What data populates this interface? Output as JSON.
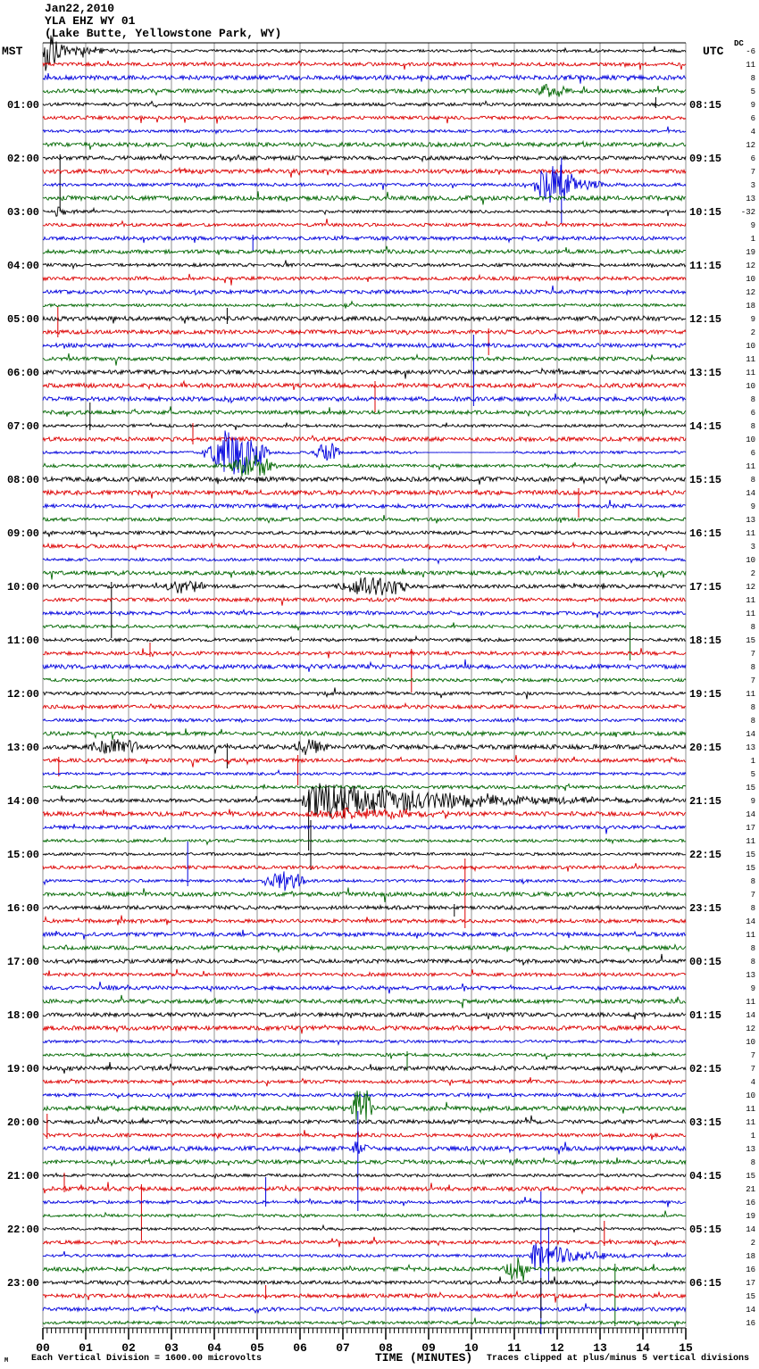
{
  "title": {
    "date": "Jan22,2010",
    "station": "YLA EHZ WY 01",
    "location": "(Lake Butte, Yellowstone Park, WY)"
  },
  "left_axis_label": "MST",
  "right_axis_label": "UTC",
  "dc_header": "DC",
  "footer": {
    "corner_mark": "M",
    "left_note": "Each Vertical Division = 1600.00 microvolts",
    "axis_title": "TIME (MINUTES)",
    "right_note": "Traces clipped at plus/minus 5 vertical divisions"
  },
  "x_axis": {
    "label": "TIME (MINUTES)",
    "tick_labels": [
      "00",
      "01",
      "02",
      "03",
      "04",
      "05",
      "06",
      "07",
      "08",
      "09",
      "10",
      "11",
      "12",
      "13",
      "14",
      "15"
    ],
    "minutes_per_line": 15
  },
  "colors": {
    "trace_cycle": [
      "#000000",
      "#dd0000",
      "#0000dd",
      "#006600"
    ],
    "grid": "#909090",
    "background": "#ffffff"
  },
  "chart_data": {
    "type": "line",
    "subtype": "helicorder",
    "lines_per_hour": 4,
    "minutes_per_line": 15,
    "hours": [
      {
        "mst": "",
        "utc": "",
        "dc": [
          -6,
          11,
          8,
          5
        ]
      },
      {
        "mst": "01:00",
        "utc": "08:15",
        "dc": [
          9,
          6,
          4,
          12
        ]
      },
      {
        "mst": "02:00",
        "utc": "09:15",
        "dc": [
          6,
          7,
          3,
          13
        ]
      },
      {
        "mst": "03:00",
        "utc": "10:15",
        "dc": [
          -32,
          9,
          1,
          19
        ]
      },
      {
        "mst": "04:00",
        "utc": "11:15",
        "dc": [
          12,
          10,
          12,
          18
        ]
      },
      {
        "mst": "05:00",
        "utc": "12:15",
        "dc": [
          9,
          2,
          10,
          11
        ]
      },
      {
        "mst": "06:00",
        "utc": "13:15",
        "dc": [
          11,
          10,
          8,
          6
        ]
      },
      {
        "mst": "07:00",
        "utc": "14:15",
        "dc": [
          8,
          10,
          6,
          11
        ]
      },
      {
        "mst": "08:00",
        "utc": "15:15",
        "dc": [
          8,
          14,
          9,
          13
        ]
      },
      {
        "mst": "09:00",
        "utc": "16:15",
        "dc": [
          11,
          3,
          10,
          2
        ]
      },
      {
        "mst": "10:00",
        "utc": "17:15",
        "dc": [
          12,
          11,
          11,
          8
        ]
      },
      {
        "mst": "11:00",
        "utc": "18:15",
        "dc": [
          15,
          7,
          8,
          7
        ]
      },
      {
        "mst": "12:00",
        "utc": "19:15",
        "dc": [
          11,
          8,
          8,
          14
        ]
      },
      {
        "mst": "13:00",
        "utc": "20:15",
        "dc": [
          13,
          1,
          5,
          15
        ]
      },
      {
        "mst": "14:00",
        "utc": "21:15",
        "dc": [
          9,
          14,
          17,
          11
        ]
      },
      {
        "mst": "15:00",
        "utc": "22:15",
        "dc": [
          15,
          15,
          8,
          7
        ]
      },
      {
        "mst": "16:00",
        "utc": "23:15",
        "dc": [
          8,
          14,
          11,
          8
        ]
      },
      {
        "mst": "17:00",
        "utc": "00:15",
        "dc": [
          8,
          13,
          9,
          11
        ]
      },
      {
        "mst": "18:00",
        "utc": "01:15",
        "dc": [
          14,
          12,
          10,
          7
        ]
      },
      {
        "mst": "19:00",
        "utc": "02:15",
        "dc": [
          7,
          4,
          10,
          11
        ]
      },
      {
        "mst": "20:00",
        "utc": "03:15",
        "dc": [
          11,
          1,
          13,
          8
        ]
      },
      {
        "mst": "21:00",
        "utc": "04:15",
        "dc": [
          15,
          21,
          16,
          19
        ]
      },
      {
        "mst": "22:00",
        "utc": "05:15",
        "dc": [
          14,
          2,
          18,
          16
        ]
      },
      {
        "mst": "23:00",
        "utc": "06:15",
        "dc": [
          17,
          15,
          14,
          16
        ]
      }
    ],
    "events": [
      {
        "row": 0,
        "type": "burst",
        "t0": 0.02,
        "t1": 0.75,
        "amp": 40,
        "shape": "decay",
        "clip": 42
      },
      {
        "row": 0,
        "type": "burst",
        "t0": 0.75,
        "t1": 2.8,
        "amp": 7,
        "shape": "decay"
      },
      {
        "row": 3,
        "type": "burst",
        "t0": 11.45,
        "t1": 12.25,
        "amp": 9,
        "shape": "sym"
      },
      {
        "row": 4,
        "type": "spike",
        "t": 14.3,
        "up": 8,
        "down": 4
      },
      {
        "row": 8,
        "type": "spike",
        "t": 0.4,
        "up": 4,
        "down": 60
      },
      {
        "row": 10,
        "type": "burst",
        "t0": 11.4,
        "t1": 12.6,
        "amp": 22,
        "shape": "sym"
      },
      {
        "row": 10,
        "type": "burst",
        "t0": 12.6,
        "t1": 13.7,
        "amp": 8,
        "shape": "decay"
      },
      {
        "row": 10,
        "type": "spike",
        "t": 12.1,
        "up": 30,
        "down": 44
      },
      {
        "row": 12,
        "type": "burst",
        "t0": 0.3,
        "t1": 0.9,
        "amp": 10,
        "shape": "decay"
      },
      {
        "row": 14,
        "type": "spike",
        "t": 4.9,
        "up": 4,
        "down": 14
      },
      {
        "row": 20,
        "type": "spike",
        "t": 4.3,
        "up": 12,
        "down": 6
      },
      {
        "row": 21,
        "type": "spike",
        "t": 0.35,
        "up": 28,
        "down": 6
      },
      {
        "row": 21,
        "type": "spike",
        "t": 10.4,
        "up": 4,
        "down": 26
      },
      {
        "row": 25,
        "type": "spike",
        "t": 7.75,
        "up": 5,
        "down": 30
      },
      {
        "row": 26,
        "type": "spike",
        "t": 10.05,
        "up": 72,
        "down": 8
      },
      {
        "row": 28,
        "type": "spike",
        "t": 1.1,
        "up": 26,
        "down": 5
      },
      {
        "row": 29,
        "type": "spike",
        "t": 3.5,
        "up": 18,
        "down": 6
      },
      {
        "row": 30,
        "type": "burst",
        "t0": 3.7,
        "t1": 5.3,
        "amp": 26,
        "shape": "sym",
        "clip": 30
      },
      {
        "row": 30,
        "type": "burst",
        "t0": 6.3,
        "t1": 7.0,
        "amp": 10,
        "shape": "sym"
      },
      {
        "row": 30,
        "type": "quiet",
        "t0": 8.75,
        "t1": 10.95
      },
      {
        "row": 31,
        "type": "burst",
        "t0": 4.3,
        "t1": 5.5,
        "amp": 13,
        "shape": "sym"
      },
      {
        "row": 33,
        "type": "spike",
        "t": 12.5,
        "up": 5,
        "down": 28
      },
      {
        "row": 40,
        "type": "burst",
        "t0": 2.8,
        "t1": 3.8,
        "amp": 7,
        "shape": "sym"
      },
      {
        "row": 40,
        "type": "burst",
        "t0": 6.7,
        "t1": 8.7,
        "amp": 10,
        "shape": "sym"
      },
      {
        "row": 40,
        "type": "spike",
        "t": 1.6,
        "up": 5,
        "down": 58
      },
      {
        "row": 43,
        "type": "spike",
        "t": 13.7,
        "up": 5,
        "down": 38
      },
      {
        "row": 45,
        "type": "spike",
        "t": 2.5,
        "up": 12,
        "down": 4
      },
      {
        "row": 45,
        "type": "spike",
        "t": 8.6,
        "up": 5,
        "down": 44
      },
      {
        "row": 52,
        "type": "burst",
        "t0": 1.1,
        "t1": 2.3,
        "amp": 10,
        "shape": "sym"
      },
      {
        "row": 52,
        "type": "burst",
        "t0": 5.6,
        "t1": 6.7,
        "amp": 7,
        "shape": "sym"
      },
      {
        "row": 52,
        "type": "spike",
        "t": 4.3,
        "up": 4,
        "down": 24
      },
      {
        "row": 53,
        "type": "spike",
        "t": 0.37,
        "up": 4,
        "down": 18
      },
      {
        "row": 53,
        "type": "spike",
        "t": 5.95,
        "up": 6,
        "down": 28
      },
      {
        "row": 56,
        "type": "burst",
        "t0": 5.95,
        "t1": 15,
        "amp": 26,
        "shape": "eq",
        "clip": 23
      },
      {
        "row": 56,
        "type": "spike",
        "t": 6.2,
        "up": 10,
        "down": 56
      },
      {
        "row": 57,
        "type": "burst",
        "t0": 5.9,
        "t1": 9.5,
        "amp": 5,
        "shape": "sym"
      },
      {
        "row": 60,
        "type": "spike",
        "t": 6.25,
        "up": 38,
        "down": 18
      },
      {
        "row": 62,
        "type": "spike",
        "t": 3.38,
        "up": 44,
        "down": 6
      },
      {
        "row": 62,
        "type": "burst",
        "t0": 5.1,
        "t1": 6.2,
        "amp": 10,
        "shape": "sym"
      },
      {
        "row": 64,
        "type": "spike",
        "t": 9.6,
        "up": 4,
        "down": 10
      },
      {
        "row": 65,
        "type": "spike",
        "t": 9.85,
        "up": 70,
        "down": 8
      },
      {
        "row": 75,
        "type": "spike",
        "t": 8.5,
        "up": 4,
        "down": 18
      },
      {
        "row": 79,
        "type": "burst",
        "t0": 7.15,
        "t1": 7.75,
        "amp": 24,
        "shape": "sym"
      },
      {
        "row": 81,
        "type": "spike",
        "t": 0.1,
        "up": 24,
        "down": 4
      },
      {
        "row": 82,
        "type": "spike",
        "t": 7.35,
        "up": 42,
        "down": 70
      },
      {
        "row": 82,
        "type": "burst",
        "t0": 7.2,
        "t1": 7.6,
        "amp": 12,
        "shape": "sym"
      },
      {
        "row": 85,
        "type": "spike",
        "t": 0.5,
        "up": 18,
        "down": 4
      },
      {
        "row": 85,
        "type": "spike",
        "t": 2.3,
        "up": 5,
        "down": 58
      },
      {
        "row": 86,
        "type": "spike",
        "t": 5.2,
        "up": 28,
        "down": 5
      },
      {
        "row": 89,
        "type": "spike",
        "t": 13.1,
        "up": 24,
        "down": 4
      },
      {
        "row": 90,
        "type": "burst",
        "t0": 11.35,
        "t1": 14.2,
        "amp": 20,
        "shape": "eq",
        "clip": 75
      },
      {
        "row": 90,
        "type": "spike",
        "t": 11.62,
        "up": 72,
        "down": 88
      },
      {
        "row": 90,
        "type": "spike",
        "t": 11.8,
        "up": 32,
        "down": 30
      },
      {
        "row": 91,
        "type": "burst",
        "t0": 10.7,
        "t1": 11.4,
        "amp": 14,
        "shape": "sym"
      },
      {
        "row": 91,
        "type": "spike",
        "t": 13.35,
        "up": 6,
        "down": 64
      },
      {
        "row": 92,
        "type": "spike",
        "t": 11.62,
        "up": 5,
        "down": 40
      },
      {
        "row": 93,
        "type": "spike",
        "t": 5.2,
        "up": 12,
        "down": 4
      }
    ]
  }
}
